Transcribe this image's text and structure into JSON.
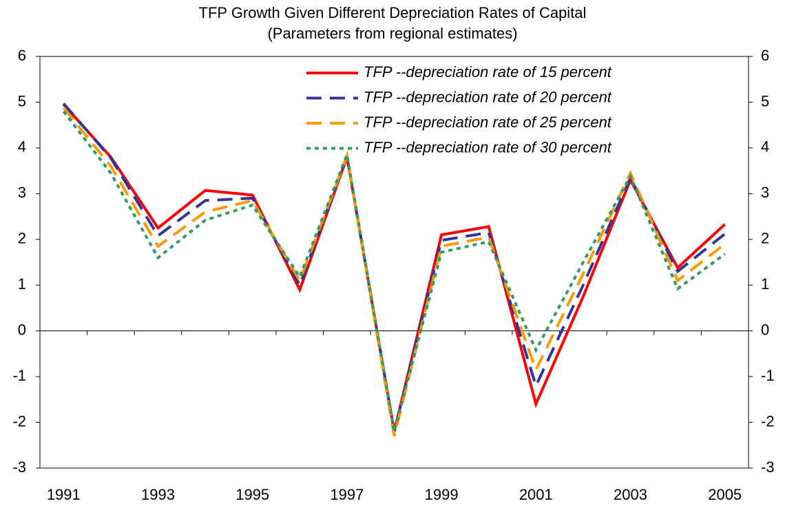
{
  "chart_data": {
    "type": "line",
    "title": "TFP Growth Given Different Depreciation Rates of Capital",
    "subtitle": "(Parameters from regional estimates)",
    "categories": [
      "1991",
      null,
      "1993",
      null,
      "1995",
      null,
      "1997",
      null,
      "1999",
      null,
      "2001",
      null,
      "2003",
      null,
      "2005"
    ],
    "series": [
      {
        "name": "TFP --depreciation rate of 15 percent",
        "color": "#ff0000",
        "dash": "solid",
        "values": [
          4.95,
          3.8,
          2.25,
          3.07,
          2.97,
          0.9,
          3.8,
          -2.2,
          2.1,
          2.28,
          -1.6,
          0.75,
          3.3,
          1.38,
          2.33
        ]
      },
      {
        "name": "TFP --depreciation rate of 20 percent",
        "color": "#333399",
        "dash": "dashed",
        "values": [
          4.97,
          3.78,
          2.08,
          2.85,
          2.9,
          1.0,
          3.82,
          -2.2,
          1.98,
          2.15,
          -1.2,
          1.0,
          3.35,
          1.3,
          2.12
        ]
      },
      {
        "name": "TFP --depreciation rate of 25 percent",
        "color": "#ff9900",
        "dash": "dashed",
        "values": [
          4.88,
          3.6,
          1.85,
          2.6,
          2.85,
          1.1,
          3.82,
          -2.3,
          1.85,
          2.05,
          -0.85,
          1.25,
          3.45,
          1.1,
          1.9
        ]
      },
      {
        "name": "TFP --depreciation rate of 30 percent",
        "color": "#339966",
        "dash": "dotted",
        "values": [
          4.8,
          3.45,
          1.6,
          2.42,
          2.75,
          1.18,
          3.85,
          -2.2,
          1.72,
          1.95,
          -0.42,
          1.5,
          3.38,
          0.92,
          1.68
        ]
      }
    ],
    "ylim": [
      -3,
      6
    ],
    "yticks": [
      -3,
      -2,
      -1,
      0,
      1,
      2,
      3,
      4,
      5,
      6
    ],
    "mirror_y_axis": true,
    "legend": "top"
  }
}
